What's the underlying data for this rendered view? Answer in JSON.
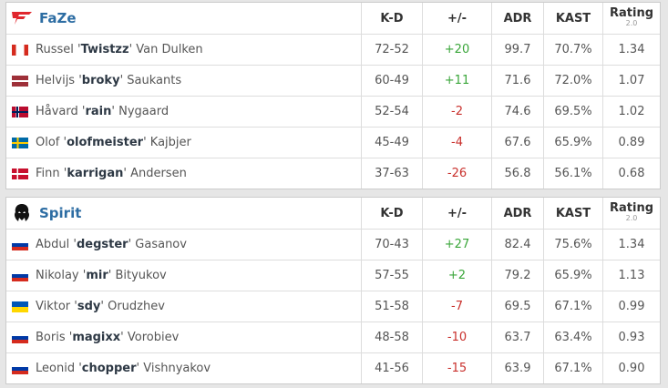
{
  "teams": [
    {
      "name": "FaZe",
      "headers": [
        "K-D",
        "+/-",
        "ADR",
        "KAST",
        "Rating"
      ],
      "rating_version": "2.0",
      "players": [
        {
          "name": [
            "Russel '",
            "Twistzz",
            "' Van Dulken"
          ],
          "stats": [
            "72-52",
            "+20",
            "99.7",
            "70.7%",
            "1.34"
          ]
        },
        {
          "name": [
            "Helvijs '",
            "broky",
            "' Saukants"
          ],
          "stats": [
            "60-49",
            "+11",
            "71.6",
            "72.0%",
            "1.07"
          ]
        },
        {
          "name": [
            "Håvard '",
            "rain",
            "' Nygaard"
          ],
          "stats": [
            "52-54",
            "-2",
            "74.6",
            "69.5%",
            "1.02"
          ]
        },
        {
          "name": [
            "Olof '",
            "olofmeister",
            "' Kajbjer"
          ],
          "stats": [
            "45-49",
            "-4",
            "67.6",
            "65.9%",
            "0.89"
          ]
        },
        {
          "name": [
            "Finn '",
            "karrigan",
            "' Andersen"
          ],
          "stats": [
            "37-63",
            "-26",
            "56.8",
            "56.1%",
            "0.68"
          ]
        }
      ]
    },
    {
      "name": "Spirit",
      "headers": [
        "K-D",
        "+/-",
        "ADR",
        "KAST",
        "Rating"
      ],
      "rating_version": "2.0",
      "players": [
        {
          "name": [
            "Abdul '",
            "degster",
            "' Gasanov"
          ],
          "stats": [
            "70-43",
            "+27",
            "82.4",
            "75.6%",
            "1.34"
          ]
        },
        {
          "name": [
            "Nikolay '",
            "mir",
            "' Bityukov"
          ],
          "stats": [
            "57-55",
            "+2",
            "79.2",
            "65.9%",
            "1.13"
          ]
        },
        {
          "name": [
            "Viktor '",
            "sdy",
            "' Orudzhev"
          ],
          "stats": [
            "51-58",
            "-7",
            "69.5",
            "67.1%",
            "0.99"
          ]
        },
        {
          "name": [
            "Boris '",
            "magixx",
            "' Vorobiev"
          ],
          "stats": [
            "48-58",
            "-10",
            "63.7",
            "63.4%",
            "0.93"
          ]
        },
        {
          "name": [
            "Leonid '",
            "chopper",
            "' Vishnyakov"
          ],
          "stats": [
            "41-56",
            "-15",
            "63.9",
            "67.1%",
            "0.90"
          ]
        }
      ]
    }
  ]
}
